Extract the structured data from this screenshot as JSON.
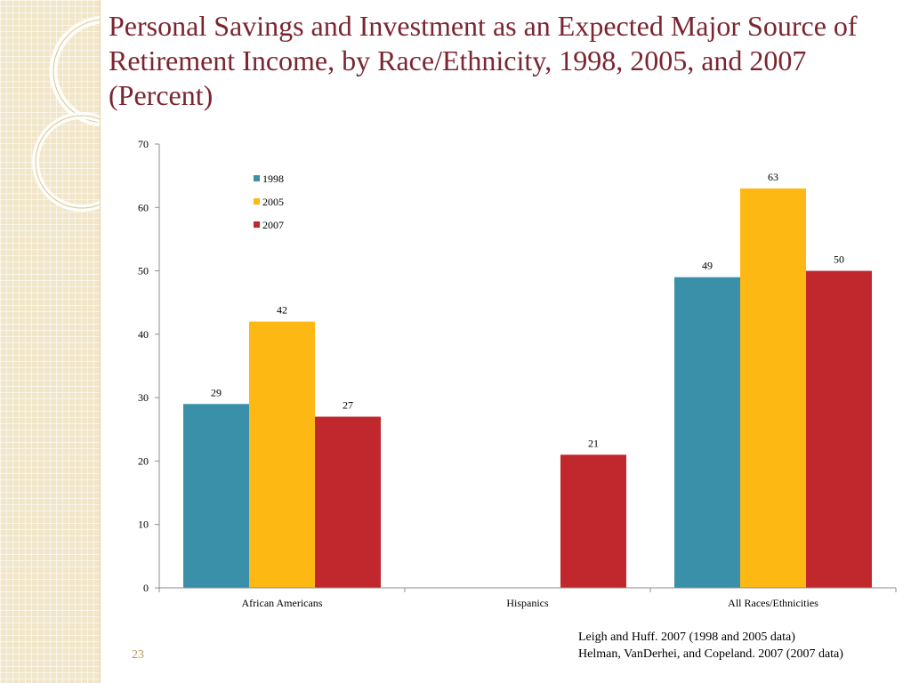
{
  "slide": {
    "title": "Personal Savings and Investment as an Expected Major Source of Retirement Income, by Race/Ethnicity, 1998, 2005, and 2007 (Percent)",
    "page_number": "23",
    "sources": [
      "Leigh and Huff. 2007 (1998 and 2005 data)",
      "Helman, VanDerhei, and Copeland. 2007 (2007 data)"
    ]
  },
  "chart_data": {
    "type": "bar",
    "title": "",
    "xlabel": "",
    "ylabel": "",
    "categories": [
      "African Americans",
      "Hispanics",
      "All Races/Ethnicities"
    ],
    "series": [
      {
        "name": "1998",
        "color": "#3990a8",
        "values": [
          29,
          null,
          49
        ]
      },
      {
        "name": "2005",
        "color": "#fdb813",
        "values": [
          42,
          null,
          63
        ]
      },
      {
        "name": "2007",
        "color": "#c0282d",
        "values": [
          27,
          21,
          50
        ]
      }
    ],
    "ylim": [
      0,
      70
    ],
    "yticks": [
      0,
      10,
      20,
      30,
      40,
      50,
      60,
      70
    ],
    "grid": false,
    "legend": "top-left",
    "data_labels": true
  }
}
